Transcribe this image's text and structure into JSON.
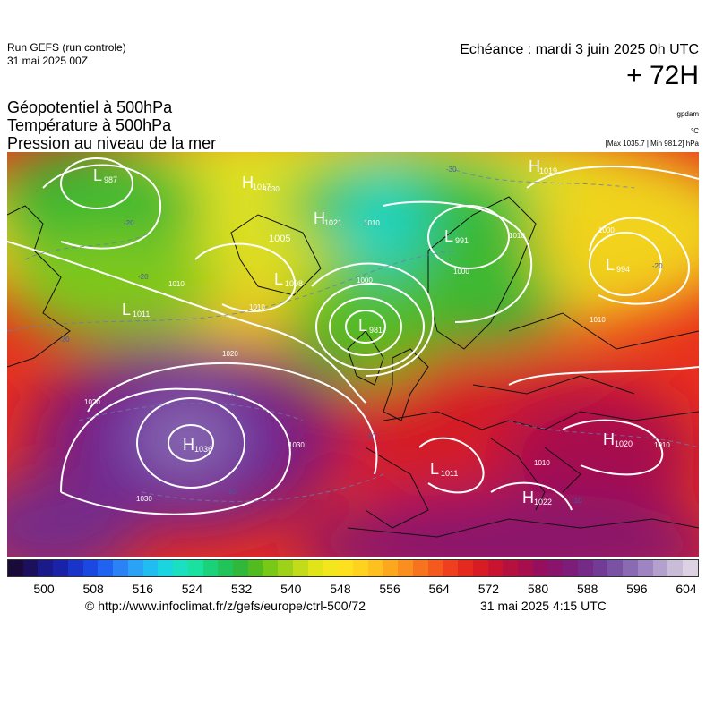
{
  "header": {
    "run": "Run GEFS (run controle)",
    "run_date": "31 mai 2025 00Z",
    "echeance": "Echéance : mardi 3 juin 2025 0h UTC",
    "lead": "+ 72H",
    "title_lines": [
      "Géopotentiel à 500hPa",
      "Température à 500hPa",
      "Pression au niveau de la mer"
    ],
    "unit_gpdam": "gpdam",
    "unit_temp": "°C",
    "minmax": "[Max 1035.7 | Min 981.2] hPa"
  },
  "pressure_centers": [
    {
      "type": "L",
      "value": "987"
    },
    {
      "type": "H",
      "value": "1017"
    },
    {
      "type": "H",
      "value": "1021"
    },
    {
      "type": "L",
      "value": "991"
    },
    {
      "type": "H",
      "value": "1019"
    },
    {
      "type": "L",
      "value": "1005"
    },
    {
      "type": "L",
      "value": "1008"
    },
    {
      "type": "L",
      "value": "994"
    },
    {
      "type": "L",
      "value": "1011"
    },
    {
      "type": "L",
      "value": "981"
    },
    {
      "type": "H",
      "value": "1036"
    },
    {
      "type": "L",
      "value": "1011"
    },
    {
      "type": "H",
      "value": "1020"
    },
    {
      "type": "H",
      "value": "1022"
    }
  ],
  "isobar_labels": [
    "1000",
    "1010",
    "1010",
    "1000",
    "1010",
    "1020",
    "1020",
    "1030",
    "1030",
    "1010",
    "1010",
    "1010",
    "1000",
    "1030",
    "1010"
  ],
  "temp_labels": [
    "-20",
    "-20",
    "-30",
    "-10",
    "-10",
    "-10",
    "-30",
    "-10",
    "-20"
  ],
  "colorbar": {
    "colors": [
      "#1a0a3a",
      "#1c0f5e",
      "#1a1a88",
      "#1a23a8",
      "#1a33c8",
      "#1a48e0",
      "#2063f0",
      "#2a82f5",
      "#2aa2f5",
      "#22bdf0",
      "#1ad4e0",
      "#1ae0c0",
      "#1ae0a0",
      "#1ad27a",
      "#20c458",
      "#30b83a",
      "#52bb20",
      "#78c818",
      "#9ed21a",
      "#c3dc1a",
      "#e2e41a",
      "#f2e61c",
      "#fde01e",
      "#fed21e",
      "#fdc01e",
      "#fca81e",
      "#fa8e1e",
      "#f7741e",
      "#f45a1e",
      "#ee401e",
      "#e42a1e",
      "#d81c24",
      "#c81430",
      "#b6103e",
      "#a60e4e",
      "#960e5e",
      "#8a146c",
      "#7e1c7a",
      "#762a88",
      "#723c96",
      "#7a52a4",
      "#8a6ab2",
      "#9e84c0",
      "#b4a0cc",
      "#c8bcd8",
      "#dcd2e4"
    ],
    "ticks": [
      "500",
      "508",
      "516",
      "524",
      "532",
      "540",
      "548",
      "556",
      "564",
      "572",
      "580",
      "588",
      "596",
      "604"
    ]
  },
  "footer": {
    "url": "© http://www.infoclimat.fr/z/gefs/europe/ctrl-500/72",
    "stamp": "31 mai 2025  4:15 UTC"
  }
}
